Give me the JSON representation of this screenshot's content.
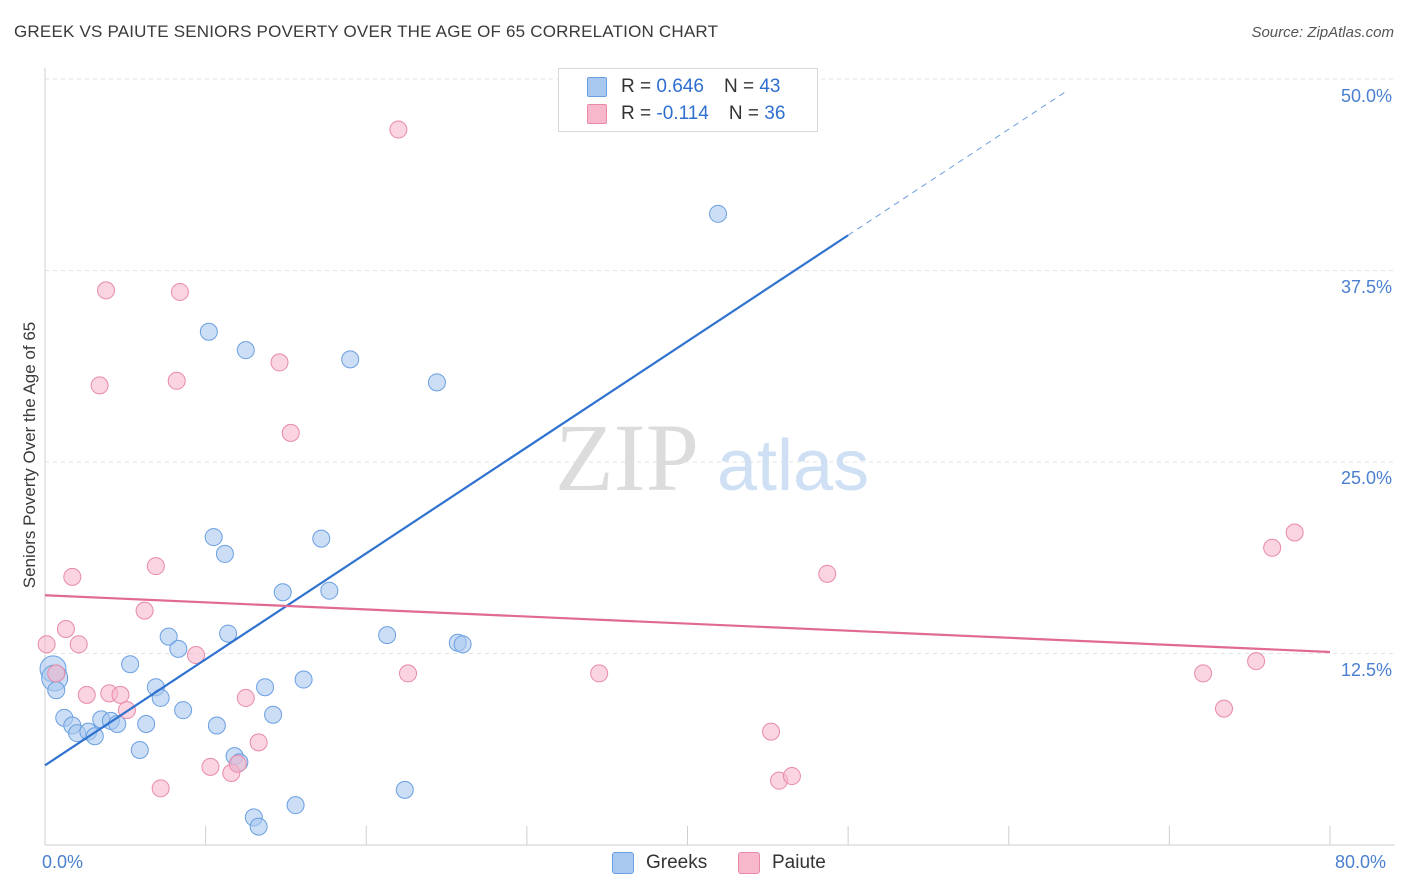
{
  "title": "GREEK VS PAIUTE SENIORS POVERTY OVER THE AGE OF 65 CORRELATION CHART",
  "source": "Source: ZipAtlas.com",
  "watermark": {
    "zip": "ZIP",
    "atlas": "atlas"
  },
  "legend_top": {
    "rows": [
      {
        "r_label": "R =",
        "r_value": "0.646",
        "n_label": "N =",
        "n_value": "43",
        "color": "#a9c8f0"
      },
      {
        "r_label": "R =",
        "r_value": "-0.114",
        "n_label": "N =",
        "n_value": "36",
        "color": "#f7b8cb"
      }
    ]
  },
  "legend_bottom": {
    "greeks": "Greeks",
    "paiute": "Paiute"
  },
  "chart_data": {
    "type": "scatter",
    "title": "GREEK VS PAIUTE SENIORS POVERTY OVER THE AGE OF 65 CORRELATION CHART",
    "xlabel": "",
    "ylabel": "Seniors Poverty Over the Age of 65",
    "xlim": [
      0,
      80
    ],
    "ylim": [
      0,
      50
    ],
    "x_tick_labels": [
      "0.0%",
      "80.0%"
    ],
    "y_tick_labels": [
      "12.5%",
      "25.0%",
      "37.5%",
      "50.0%"
    ],
    "y_ticks": [
      12.5,
      25,
      37.5,
      50
    ],
    "grid": true,
    "series": [
      {
        "name": "Greeks",
        "color": "#6a9fe0",
        "fill": "#a9c8f0",
        "trend": {
          "x": [
            0,
            50
          ],
          "y": [
            5.2,
            39.8
          ],
          "dash_to_x": 63.5,
          "color": "#2f72cf"
        },
        "points": [
          [
            0.5,
            11.5
          ],
          [
            0.6,
            10.9
          ],
          [
            0.7,
            10.1
          ],
          [
            1.2,
            8.3
          ],
          [
            1.7,
            7.8
          ],
          [
            2.0,
            7.3
          ],
          [
            2.7,
            7.4
          ],
          [
            3.1,
            7.1
          ],
          [
            3.5,
            8.2
          ],
          [
            4.1,
            8.1
          ],
          [
            4.5,
            7.9
          ],
          [
            5.3,
            11.8
          ],
          [
            5.9,
            6.2
          ],
          [
            6.3,
            7.9
          ],
          [
            6.9,
            10.3
          ],
          [
            7.2,
            9.6
          ],
          [
            7.7,
            13.6
          ],
          [
            8.3,
            12.8
          ],
          [
            8.6,
            8.8
          ],
          [
            10.5,
            20.1
          ],
          [
            10.2,
            33.5
          ],
          [
            10.7,
            7.8
          ],
          [
            11.2,
            19.0
          ],
          [
            11.4,
            13.8
          ],
          [
            11.8,
            5.8
          ],
          [
            12.1,
            5.4
          ],
          [
            12.5,
            32.3
          ],
          [
            13.0,
            1.8
          ],
          [
            13.3,
            1.2
          ],
          [
            13.7,
            10.3
          ],
          [
            14.2,
            8.5
          ],
          [
            14.8,
            16.5
          ],
          [
            15.6,
            2.6
          ],
          [
            16.1,
            10.8
          ],
          [
            17.2,
            20.0
          ],
          [
            17.7,
            16.6
          ],
          [
            19.0,
            31.7
          ],
          [
            21.3,
            13.7
          ],
          [
            22.4,
            3.6
          ],
          [
            24.4,
            30.2
          ],
          [
            25.7,
            13.2
          ],
          [
            26.0,
            13.1
          ],
          [
            41.9,
            41.2
          ]
        ]
      },
      {
        "name": "Paiute",
        "color": "#e88aa7",
        "fill": "#f7b8cb",
        "trend": {
          "x": [
            0,
            80
          ],
          "y": [
            16.3,
            12.6
          ],
          "color": "#e06a92"
        },
        "points": [
          [
            0.1,
            13.1
          ],
          [
            0.7,
            11.2
          ],
          [
            1.3,
            14.1
          ],
          [
            1.7,
            17.5
          ],
          [
            2.1,
            13.1
          ],
          [
            2.6,
            9.8
          ],
          [
            3.4,
            30.0
          ],
          [
            3.8,
            36.2
          ],
          [
            4.0,
            9.9
          ],
          [
            4.7,
            9.8
          ],
          [
            5.1,
            8.8
          ],
          [
            6.2,
            15.3
          ],
          [
            6.9,
            18.2
          ],
          [
            7.2,
            3.7
          ],
          [
            8.2,
            30.3
          ],
          [
            8.4,
            36.1
          ],
          [
            9.4,
            12.4
          ],
          [
            10.3,
            5.1
          ],
          [
            11.6,
            4.7
          ],
          [
            12.0,
            5.3
          ],
          [
            12.5,
            9.6
          ],
          [
            13.3,
            6.7
          ],
          [
            14.6,
            31.5
          ],
          [
            15.3,
            26.9
          ],
          [
            22.0,
            46.7
          ],
          [
            22.6,
            11.2
          ],
          [
            34.5,
            11.2
          ],
          [
            45.2,
            7.4
          ],
          [
            45.7,
            4.2
          ],
          [
            46.5,
            4.5
          ],
          [
            48.7,
            17.7
          ],
          [
            72.1,
            11.2
          ],
          [
            73.4,
            8.9
          ],
          [
            75.4,
            12.0
          ],
          [
            76.4,
            19.4
          ],
          [
            77.8,
            20.4
          ]
        ]
      }
    ]
  }
}
